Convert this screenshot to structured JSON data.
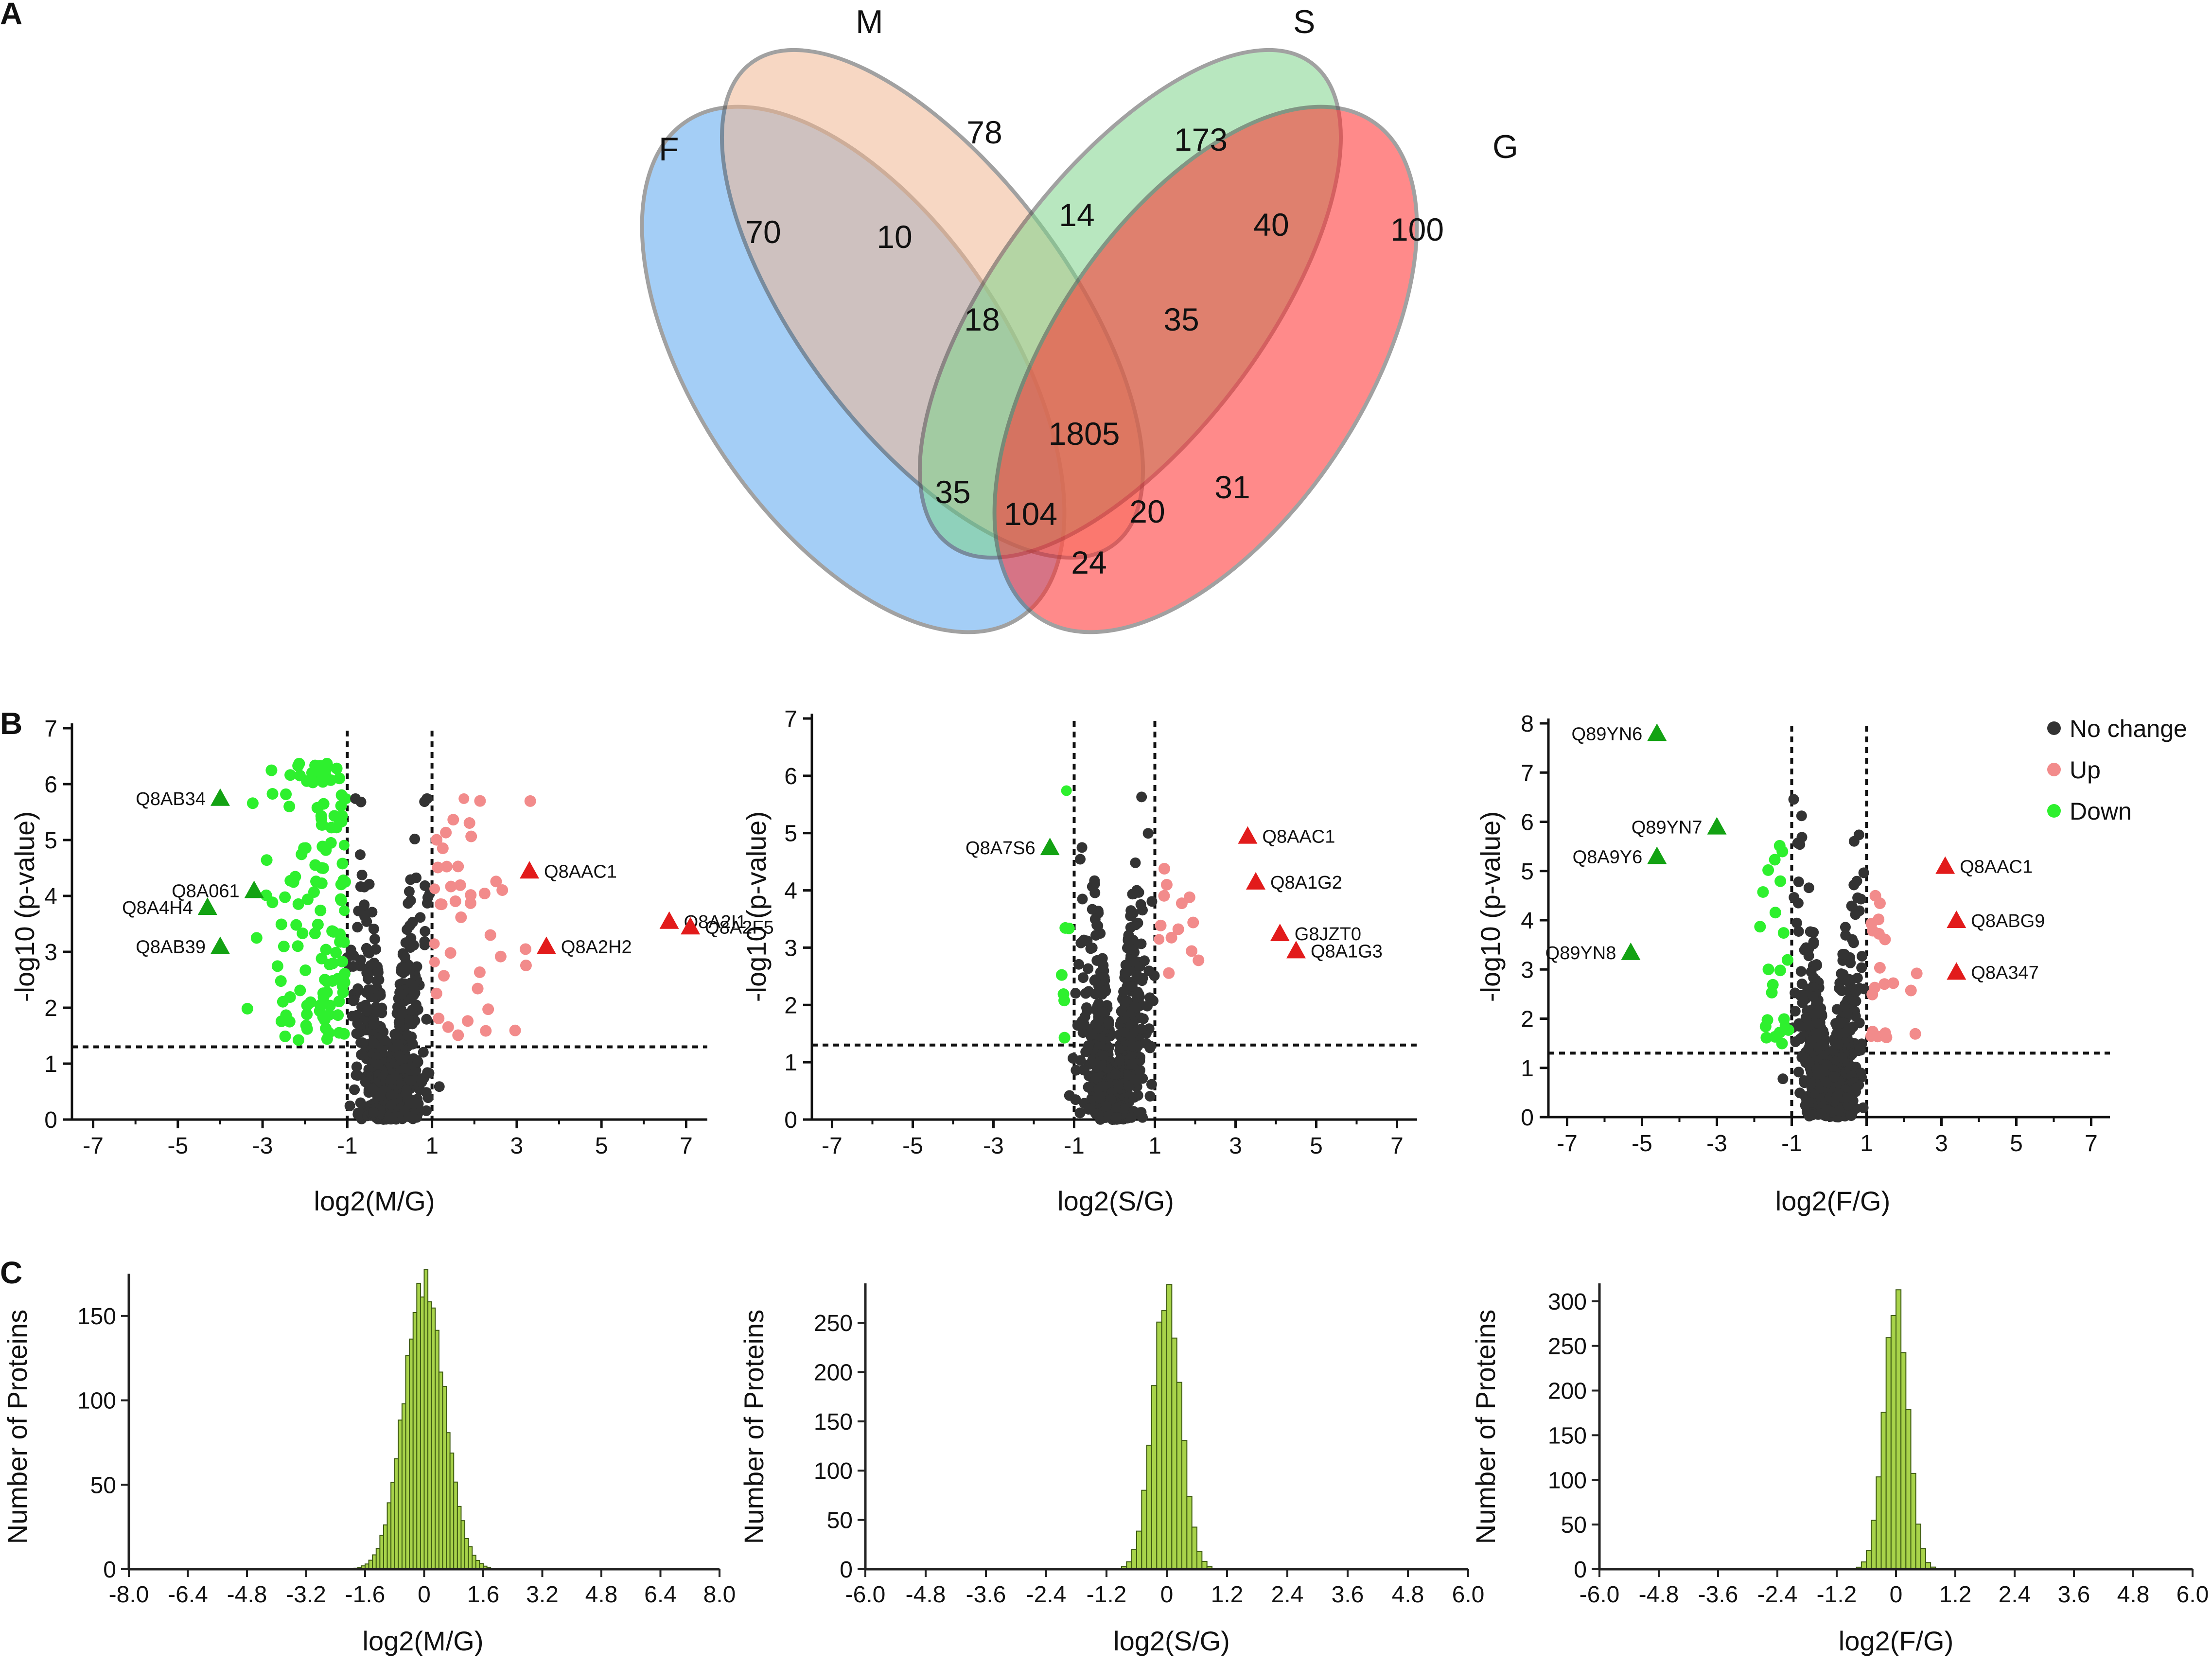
{
  "panel_labels": [
    "A",
    "B",
    "C"
  ],
  "chart_data": [
    {
      "type": "venn",
      "panel": "A",
      "sets": [
        {
          "name": "F",
          "color": "#5aa7ef"
        },
        {
          "name": "M",
          "color": "#f2b893"
        },
        {
          "name": "S",
          "color": "#7fd48c"
        },
        {
          "name": "G",
          "color": "#ff2c2c"
        }
      ],
      "regions": [
        {
          "sets": "F",
          "value": "70"
        },
        {
          "sets": "M",
          "value": "78"
        },
        {
          "sets": "S",
          "value": "173"
        },
        {
          "sets": "G",
          "value": "100"
        },
        {
          "sets": "F,M",
          "value": "10"
        },
        {
          "sets": "M,S",
          "value": "14"
        },
        {
          "sets": "S,G",
          "value": "40"
        },
        {
          "sets": "F,M,S",
          "value": "18"
        },
        {
          "sets": "M,S,G",
          "value": "35"
        },
        {
          "sets": "F,M,S,G",
          "value": "1805"
        },
        {
          "sets": "F,S",
          "value": "35"
        },
        {
          "sets": "F,S,G",
          "value": "104"
        },
        {
          "sets": "F,M,G",
          "value": "20"
        },
        {
          "sets": "M,G",
          "value": "31"
        },
        {
          "sets": "F,G",
          "value": "24"
        }
      ]
    },
    {
      "type": "scatter",
      "panel": "B",
      "xlabel": "log2(M/G)",
      "ylabel": "-log10 (p-value)",
      "xlim": [
        -7.5,
        7.5
      ],
      "ylim": [
        0,
        7
      ],
      "xticks": [
        "-7",
        "-5",
        "-3",
        "-1",
        "1",
        "3",
        "5",
        "7"
      ],
      "yticks": [
        "0",
        "1",
        "2",
        "3",
        "4",
        "5",
        "6",
        "7"
      ],
      "thresholds": {
        "fc": [
          -1,
          1
        ],
        "p": 1.3
      },
      "labeled_points": [
        {
          "id": "Q8AB34",
          "x": -4.0,
          "y": 5.75,
          "status": "Down"
        },
        {
          "id": "Q8A061",
          "x": -3.2,
          "y": 4.1,
          "status": "Down"
        },
        {
          "id": "Q8A4H4",
          "x": -4.3,
          "y": 3.8,
          "status": "Down"
        },
        {
          "id": "Q8AB39",
          "x": -4.0,
          "y": 3.1,
          "status": "Down"
        },
        {
          "id": "Q8AAC1",
          "x": 3.3,
          "y": 4.45,
          "status": "Up"
        },
        {
          "id": "Q8A2I1",
          "x": 6.6,
          "y": 3.55,
          "status": "Up"
        },
        {
          "id": "Q8A2H2",
          "x": 3.7,
          "y": 3.1,
          "status": "Up"
        },
        {
          "id": "Q8A2F5",
          "x": 7.1,
          "y": 3.45,
          "status": "Up"
        }
      ]
    },
    {
      "type": "scatter",
      "panel": "B",
      "xlabel": "log2(S/G)",
      "ylabel": "-log10 (p-value)",
      "xlim": [
        -7.5,
        7.5
      ],
      "ylim": [
        0,
        7
      ],
      "xticks": [
        "-7",
        "-5",
        "-3",
        "-1",
        "1",
        "3",
        "5",
        "7"
      ],
      "yticks": [
        "0",
        "1",
        "2",
        "3",
        "4",
        "5",
        "6",
        "7"
      ],
      "thresholds": {
        "fc": [
          -1,
          1
        ],
        "p": 1.3
      },
      "labeled_points": [
        {
          "id": "Q8A7S6",
          "x": -1.6,
          "y": 4.75,
          "status": "Down"
        },
        {
          "id": "Q8AAC1",
          "x": 3.3,
          "y": 4.95,
          "status": "Up"
        },
        {
          "id": "Q8A1G2",
          "x": 3.5,
          "y": 4.15,
          "status": "Up"
        },
        {
          "id": "G8JZT0",
          "x": 4.1,
          "y": 3.25,
          "status": "Up"
        },
        {
          "id": "Q8A1G3",
          "x": 4.5,
          "y": 2.95,
          "status": "Up"
        }
      ]
    },
    {
      "type": "scatter",
      "panel": "B",
      "xlabel": "log2(F/G)",
      "ylabel": "-log10 (p-value)",
      "xlim": [
        -7.5,
        7.5
      ],
      "ylim": [
        0,
        8
      ],
      "xticks": [
        "-7",
        "-5",
        "-3",
        "-1",
        "1",
        "3",
        "5",
        "7"
      ],
      "yticks": [
        "0",
        "1",
        "2",
        "3",
        "4",
        "5",
        "6",
        "7",
        "8"
      ],
      "thresholds": {
        "fc": [
          -1,
          1
        ],
        "p": 1.3
      },
      "legend": [
        "No change",
        "Up",
        "Down"
      ],
      "legend_position": "top-right",
      "labeled_points": [
        {
          "id": "Q89YN6",
          "x": -4.6,
          "y": 7.8,
          "status": "Down"
        },
        {
          "id": "Q89YN7",
          "x": -3.0,
          "y": 5.9,
          "status": "Down"
        },
        {
          "id": "Q8A9Y6",
          "x": -4.6,
          "y": 5.3,
          "status": "Down"
        },
        {
          "id": "Q89YN8",
          "x": -5.3,
          "y": 3.35,
          "status": "Down"
        },
        {
          "id": "Q8AAC1",
          "x": 3.1,
          "y": 5.1,
          "status": "Up"
        },
        {
          "id": "Q8ABG9",
          "x": 3.4,
          "y": 4.0,
          "status": "Up"
        },
        {
          "id": "Q8A347",
          "x": 3.4,
          "y": 2.95,
          "status": "Up"
        }
      ]
    },
    {
      "type": "histogram",
      "panel": "C",
      "xlabel": "log2(M/G)",
      "ylabel": "Number of Proteins",
      "xlim": [
        -8,
        8
      ],
      "ylim": [
        0,
        175
      ],
      "xticks": [
        "-8.0",
        "-6.4",
        "-4.8",
        "-3.2",
        "-1.6",
        "0",
        "1.6",
        "3.2",
        "4.8",
        "6.4",
        "8.0"
      ],
      "yticks": [
        "0",
        "50",
        "100",
        "150"
      ],
      "center": 0,
      "spread": 0.55,
      "peak": 170
    },
    {
      "type": "histogram",
      "panel": "C",
      "xlabel": "log2(S/G)",
      "ylabel": "Number of Proteins",
      "xlim": [
        -6,
        6
      ],
      "ylim": [
        0,
        290
      ],
      "xticks": [
        "-6.0",
        "-4.8",
        "-3.6",
        "-2.4",
        "-1.2",
        "0",
        "1.2",
        "2.4",
        "3.6",
        "4.8",
        "6.0"
      ],
      "yticks": [
        "0",
        "50",
        "100",
        "150",
        "200",
        "250"
      ],
      "center": 0,
      "spread": 0.28,
      "peak": 280
    },
    {
      "type": "histogram",
      "panel": "C",
      "xlabel": "log2(F/G)",
      "ylabel": "Number of Proteins",
      "xlim": [
        -6,
        6
      ],
      "ylim": [
        0,
        320
      ],
      "xticks": [
        "-6.0",
        "-4.8",
        "-3.6",
        "-2.4",
        "-1.2",
        "0",
        "1.2",
        "2.4",
        "3.6",
        "4.8",
        "6.0"
      ],
      "yticks": [
        "0",
        "50",
        "100",
        "150",
        "200",
        "250",
        "300"
      ],
      "center": 0,
      "spread": 0.24,
      "peak": 305
    }
  ],
  "colors": {
    "no_change": "#333333",
    "up_light": "#f28b8b",
    "up_strong": "#e21b1b",
    "down_light": "#2ef02e",
    "down_strong": "#13a213",
    "hist_fill": "#a8d34a",
    "hist_edge": "#3d5a12"
  }
}
